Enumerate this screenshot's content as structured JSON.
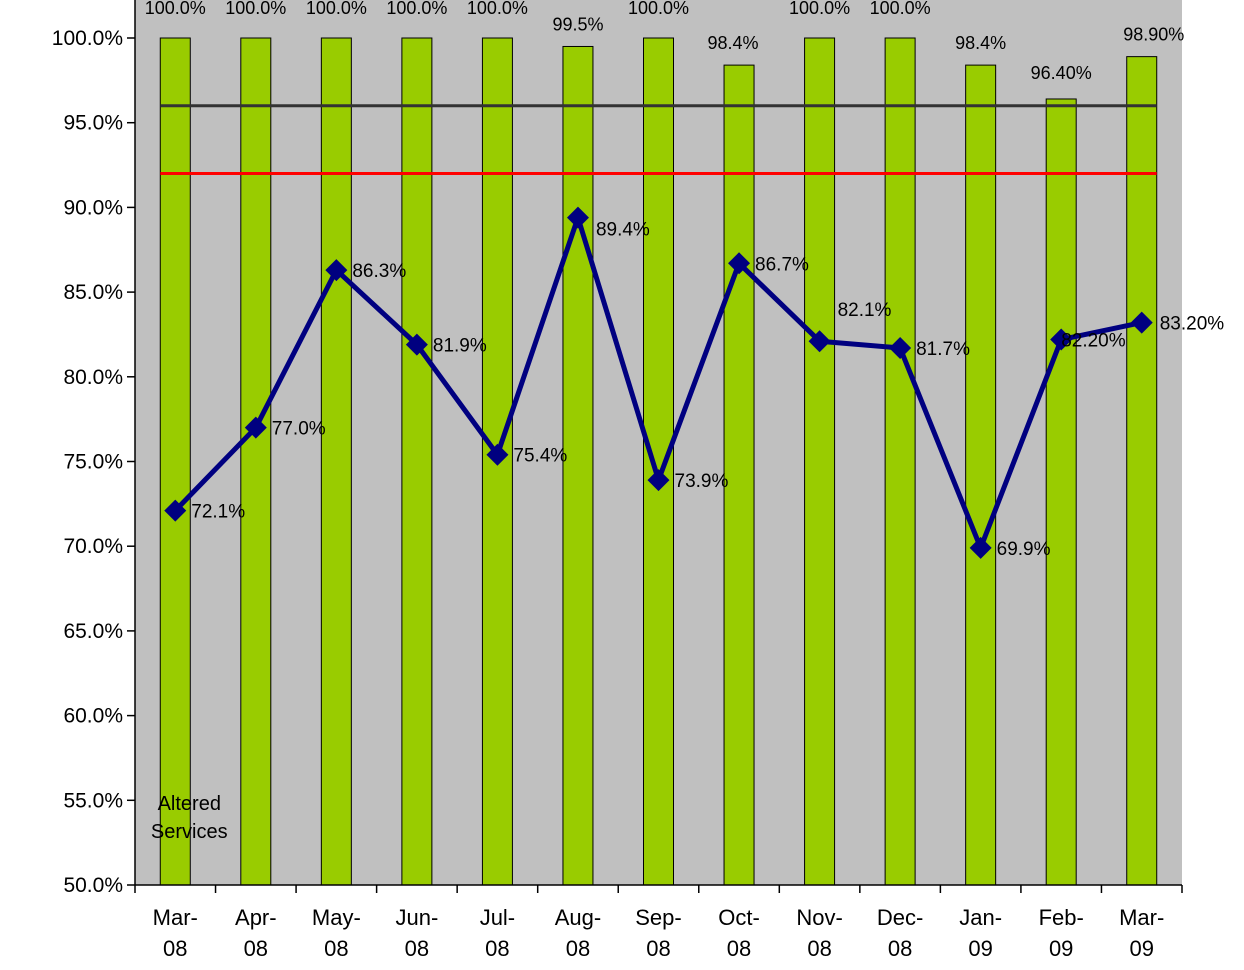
{
  "chart_data": {
    "type": "bar",
    "title": "",
    "xlabel": "",
    "ylabel": "",
    "ylim": [
      50,
      100
    ],
    "yticks": [
      "50.0%",
      "55.0%",
      "60.0%",
      "65.0%",
      "70.0%",
      "75.0%",
      "80.0%",
      "85.0%",
      "90.0%",
      "95.0%",
      "100.0%"
    ],
    "ytick_values": [
      50,
      55,
      60,
      65,
      70,
      75,
      80,
      85,
      90,
      95,
      100
    ],
    "grid": false,
    "plot_background": "#c0c0c0",
    "categories": [
      {
        "top": "Mar-",
        "bottom": "08"
      },
      {
        "top": "Apr-",
        "bottom": "08"
      },
      {
        "top": "May-",
        "bottom": "08"
      },
      {
        "top": "Jun-",
        "bottom": "08"
      },
      {
        "top": "Jul-",
        "bottom": "08"
      },
      {
        "top": "Aug-",
        "bottom": "08"
      },
      {
        "top": "Sep-",
        "bottom": "08"
      },
      {
        "top": "Oct-",
        "bottom": "08"
      },
      {
        "top": "Nov-",
        "bottom": "08"
      },
      {
        "top": "Dec-",
        "bottom": "08"
      },
      {
        "top": "Jan-",
        "bottom": "09"
      },
      {
        "top": "Feb-",
        "bottom": "09"
      },
      {
        "top": "Mar-",
        "bottom": "09"
      }
    ],
    "series": [
      {
        "type": "bar",
        "color": "#99cc00",
        "values": [
          100.0,
          100.0,
          100.0,
          100.0,
          100.0,
          99.5,
          100.0,
          98.4,
          100.0,
          100.0,
          98.4,
          96.4,
          98.9
        ],
        "labels": [
          "100.0%",
          "100.0%",
          "100.0%",
          "100.0%",
          "100.0%",
          "99.5%",
          "100.0%",
          "98.4%",
          "100.0%",
          "100.0%",
          "98.4%",
          "96.40%",
          "98.90%"
        ]
      },
      {
        "type": "line",
        "color": "#000080",
        "marker": "diamond",
        "values": [
          72.1,
          77.0,
          86.3,
          81.9,
          75.4,
          89.4,
          73.9,
          86.7,
          82.1,
          81.7,
          69.9,
          82.2,
          83.2
        ],
        "labels": [
          "72.1%",
          "77.0%",
          "86.3%",
          "81.9%",
          "75.4%",
          "89.4%",
          "73.9%",
          "86.7%",
          "82.1%",
          "81.7%",
          "69.9%",
          "82.20%",
          "83.20%"
        ]
      }
    ],
    "reference_lines": [
      {
        "value": 96,
        "color": "#333333"
      },
      {
        "value": 92,
        "color": "#ff0000"
      }
    ],
    "annotations": [
      {
        "line1": "Altered",
        "line2": "Services"
      }
    ]
  }
}
